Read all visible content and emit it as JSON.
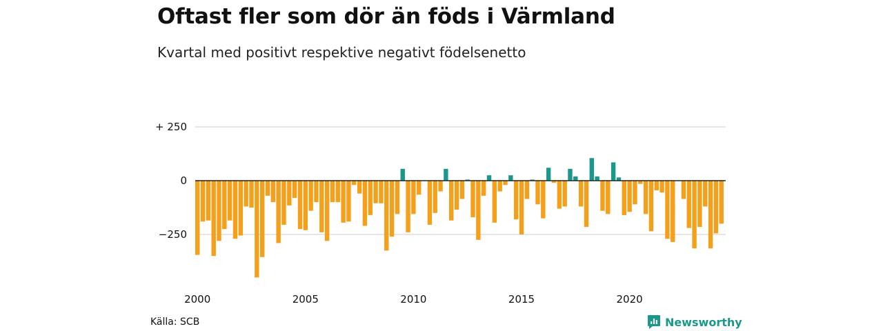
{
  "header": {
    "title": "Oftast fler som dör än föds i Värmland",
    "subtitle": "Kvartal med positivt respektive negativt födelsenetto"
  },
  "footer": {
    "source": "Källa: SCB",
    "brand": "Newsworthy",
    "brand_icon": "newsworthy-logo-icon"
  },
  "colors": {
    "positive": "#1a9889",
    "negative": "#f5a01a",
    "grid": "#dddddd",
    "zero": "#222222",
    "brand": "#1a9889"
  },
  "chart_data": {
    "type": "bar",
    "title": "Oftast fler som dör än föds i Värmland",
    "subtitle": "Kvartal med positivt respektive negativt födelsenetto",
    "ylim": [
      -450,
      250
    ],
    "yticks": [
      {
        "value": 250,
        "label": "+ 250"
      },
      {
        "value": 0,
        "label": "0"
      },
      {
        "value": -250,
        "label": "−250"
      }
    ],
    "xticks": [
      "2000",
      "2005",
      "2010",
      "2015",
      "2020"
    ],
    "grid": true,
    "start": "2000 Q1",
    "end": "2024 Q2",
    "series": [
      {
        "values": [
          -345,
          -190,
          -185,
          -350,
          -280,
          -225,
          -185,
          -270,
          -255,
          -120,
          -125,
          -450,
          -355,
          -70,
          -100,
          -290,
          -205,
          -115,
          -80,
          -225,
          -230,
          -140,
          -100,
          -240,
          -280,
          -100,
          -100,
          -195,
          -190,
          -20,
          -60,
          -210,
          -160,
          -105,
          -105,
          -325,
          -260,
          -155,
          55,
          -240,
          -155,
          -65,
          0,
          -205,
          -150,
          -50,
          55,
          -185,
          -135,
          -85,
          5,
          -170,
          -275,
          -70,
          25,
          -195,
          -50,
          -20,
          25,
          -180,
          -250,
          -85,
          5,
          -110,
          -175,
          60,
          -10,
          -130,
          -120,
          55,
          20,
          -120,
          -215,
          105,
          20,
          -140,
          -155,
          85,
          15,
          -160,
          -145,
          -110,
          -15,
          -155,
          -235,
          -45,
          -55,
          -270,
          -285,
          0,
          -85,
          -220,
          -315,
          -215,
          -120,
          -315,
          -245,
          -200
        ]
      }
    ]
  }
}
